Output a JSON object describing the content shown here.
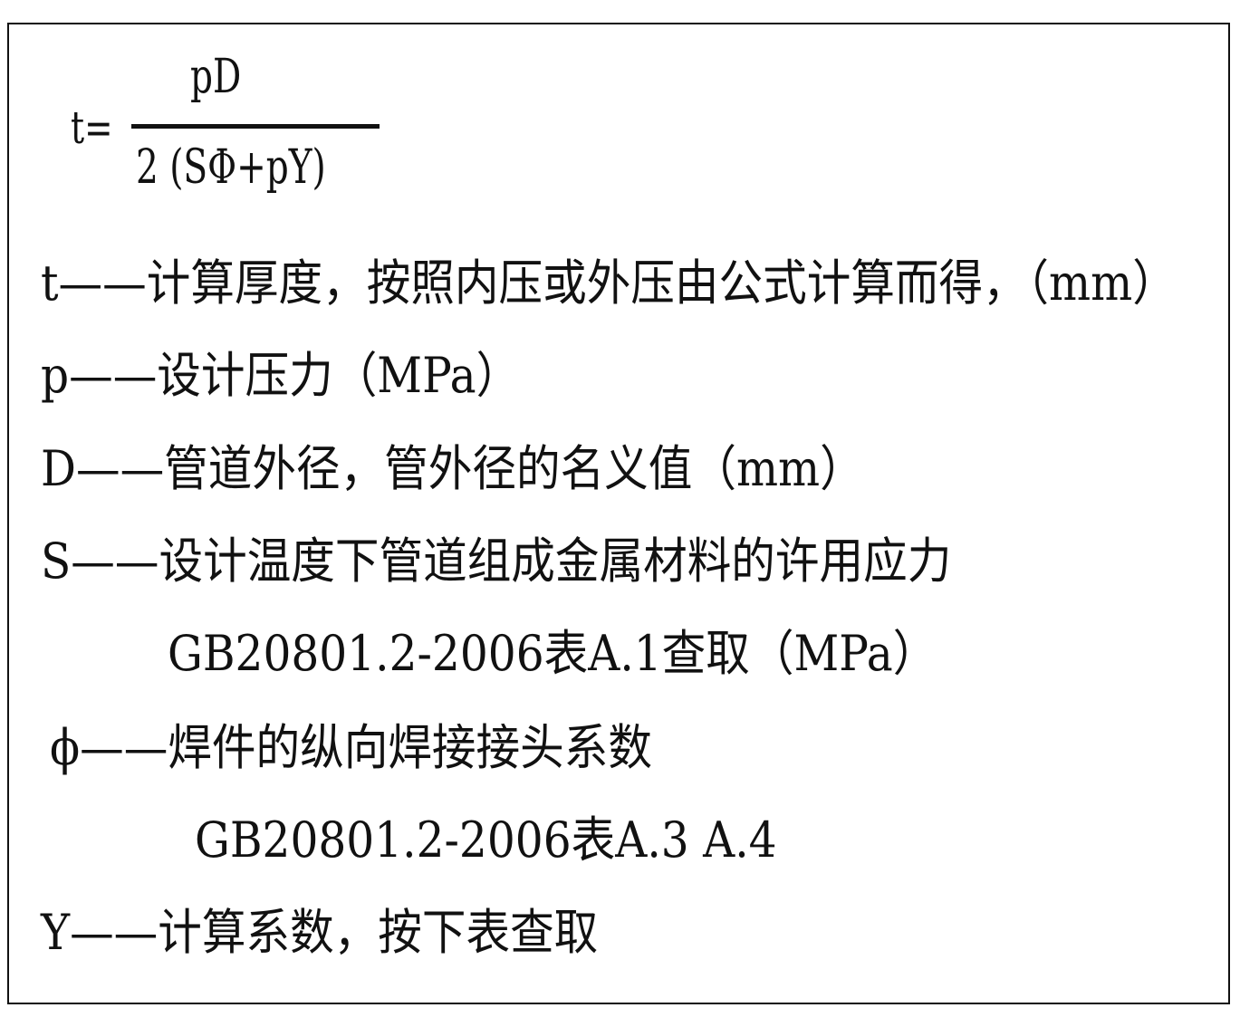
{
  "formula": {
    "lhs": "t=",
    "numerator": "pD",
    "denominator": "2 (SΦ+pY)"
  },
  "definitions": [
    "t——计算厚度，按照内压或外压由公式计算而得，（mm）",
    "p——设计压力（MPa）",
    "D——管道外径，管外径的名义值（mm）",
    "S——设计温度下管道组成金属材料的许用应力",
    "GB20801.2-2006表A.1查取（MPa）",
    "ϕ——焊件的纵向焊接接头系数",
    "GB20801.2-2006表A.3 A.4",
    "Y——计算系数，按下表查取"
  ]
}
